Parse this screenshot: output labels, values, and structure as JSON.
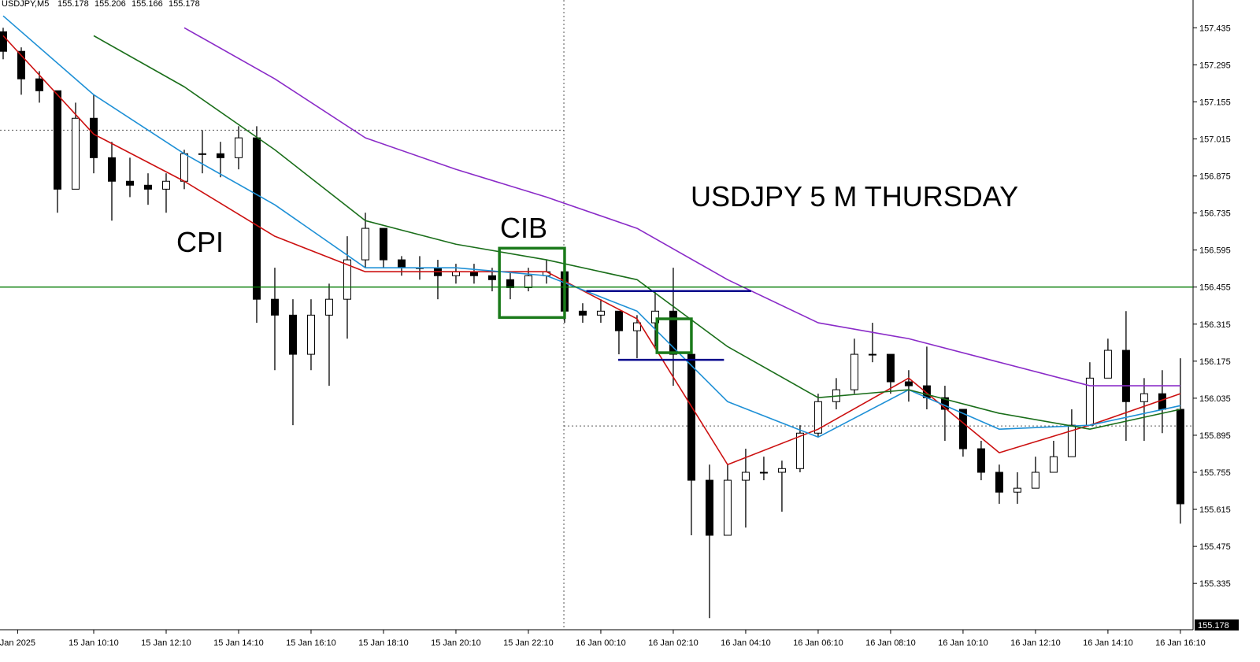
{
  "chart_data": {
    "type": "candlestick",
    "symbol": "USDJPY,M5",
    "bar": [
      155.178,
      155.206,
      155.166,
      155.178
    ],
    "last_price": 155.178,
    "annotations": [
      "CPI",
      "CIB",
      "USDJPY 5 M THURSDAY"
    ],
    "annotation_color": "#e01010",
    "xlim": [
      -0.174,
      65.7
    ],
    "ylim": [
      155.16,
      157.54
    ],
    "xticks": [
      {
        "value": 0.8,
        "label": "Jan 2025"
      },
      {
        "value": 5,
        "label": "15 Jan 10:10"
      },
      {
        "value": 9,
        "label": "15 Jan 12:10"
      },
      {
        "value": 13,
        "label": "15 Jan 14:10"
      },
      {
        "value": 17,
        "label": "15 Jan 16:10"
      },
      {
        "value": 21,
        "label": "15 Jan 18:10"
      },
      {
        "value": 25,
        "label": "15 Jan 20:10"
      },
      {
        "value": 29,
        "label": "15 Jan 22:10"
      },
      {
        "value": 33,
        "label": "16 Jan 00:10"
      },
      {
        "value": 37,
        "label": "16 Jan 02:10"
      },
      {
        "value": 41,
        "label": "16 Jan 04:10"
      },
      {
        "value": 45,
        "label": "16 Jan 06:10"
      },
      {
        "value": 49,
        "label": "16 Jan 08:10"
      },
      {
        "value": 53,
        "label": "16 Jan 10:10"
      },
      {
        "value": 57,
        "label": "16 Jan 12:10"
      },
      {
        "value": 61,
        "label": "16 Jan 14:10"
      },
      {
        "value": 65,
        "label": "16 Jan 16:10"
      }
    ],
    "yticks": [
      157.435,
      157.295,
      157.155,
      157.015,
      156.875,
      156.735,
      156.595,
      156.455,
      156.315,
      156.175,
      156.035,
      155.895,
      155.755,
      155.615,
      155.475,
      155.335
    ],
    "bull_color": "#ffffff",
    "bear_color": "#000000",
    "open": [
      157.42,
      157.346,
      157.242,
      157.197,
      156.825,
      157.093,
      156.944,
      156.855,
      156.84,
      156.825,
      156.855,
      156.959,
      156.959,
      156.944,
      157.019,
      156.409,
      156.349,
      156.201,
      156.349,
      156.409,
      156.558,
      156.677,
      156.558,
      156.528,
      156.528,
      156.498,
      156.513,
      156.498,
      156.483,
      156.453,
      156.498,
      156.513,
      156.364,
      156.349,
      156.364,
      156.29,
      156.32,
      156.364,
      156.201,
      155.725,
      155.517,
      155.725,
      155.755,
      155.755,
      155.769,
      155.903,
      156.022,
      156.067,
      156.201,
      156.201,
      156.097,
      156.082,
      156.037,
      155.993,
      155.844,
      155.755,
      155.68,
      155.695,
      155.755,
      155.814,
      155.933,
      156.111,
      156.216,
      156.022,
      156.052,
      155.993
    ],
    "high": [
      157.435,
      157.361,
      157.271,
      157.197,
      157.152,
      157.182,
      157.004,
      156.944,
      156.885,
      156.885,
      156.974,
      157.048,
      157.004,
      157.063,
      157.063,
      156.528,
      156.409,
      156.409,
      156.468,
      156.647,
      156.736,
      156.677,
      156.572,
      156.572,
      156.558,
      156.543,
      156.543,
      156.528,
      156.513,
      156.528,
      156.558,
      156.513,
      156.394,
      156.409,
      156.364,
      156.349,
      156.439,
      156.528,
      156.201,
      155.784,
      155.784,
      155.844,
      155.814,
      155.799,
      155.933,
      156.052,
      156.111,
      156.26,
      156.32,
      156.201,
      156.141,
      156.23,
      156.082,
      155.993,
      155.874,
      155.784,
      155.755,
      155.814,
      155.874,
      155.993,
      156.171,
      156.26,
      156.364,
      156.111,
      156.141,
      156.186
    ],
    "low": [
      157.316,
      157.182,
      157.152,
      156.736,
      156.825,
      156.885,
      156.706,
      156.795,
      156.766,
      156.736,
      156.825,
      156.885,
      156.87,
      156.9,
      156.32,
      156.141,
      155.933,
      156.141,
      156.082,
      156.26,
      156.528,
      156.528,
      156.498,
      156.483,
      156.409,
      156.468,
      156.468,
      156.439,
      156.409,
      156.439,
      156.468,
      156.32,
      156.32,
      156.32,
      156.201,
      156.186,
      156.23,
      156.082,
      155.517,
      155.204,
      155.517,
      155.546,
      155.725,
      155.606,
      155.755,
      155.888,
      155.993,
      156.052,
      156.171,
      156.052,
      156.022,
      155.993,
      155.874,
      155.814,
      155.725,
      155.636,
      155.636,
      155.695,
      155.755,
      155.814,
      155.933,
      156.111,
      155.874,
      155.874,
      155.903,
      155.561
    ],
    "close": [
      157.346,
      157.242,
      157.197,
      156.825,
      157.093,
      156.944,
      156.855,
      156.84,
      156.825,
      156.855,
      156.959,
      156.959,
      156.944,
      157.019,
      156.409,
      156.349,
      156.201,
      156.349,
      156.409,
      156.558,
      156.677,
      156.558,
      156.528,
      156.528,
      156.498,
      156.513,
      156.498,
      156.483,
      156.453,
      156.498,
      156.513,
      156.364,
      156.349,
      156.364,
      156.29,
      156.32,
      156.364,
      156.201,
      155.725,
      155.517,
      155.725,
      155.755,
      155.755,
      155.769,
      155.903,
      156.022,
      156.067,
      156.201,
      156.201,
      156.097,
      156.082,
      156.037,
      155.993,
      155.844,
      155.755,
      155.68,
      155.695,
      155.755,
      155.814,
      155.933,
      156.111,
      156.216,
      156.022,
      156.052,
      155.993,
      155.636
    ],
    "series": [
      {
        "color": "#cc1010",
        "x": [
          0,
          5,
          10,
          15,
          20,
          25,
          30,
          35,
          40,
          45,
          50,
          55,
          60,
          65
        ],
        "values": [
          157.405,
          157.033,
          156.855,
          156.647,
          156.513,
          156.513,
          156.513,
          156.335,
          155.784,
          155.918,
          156.111,
          155.829,
          155.933,
          156.052
        ]
      },
      {
        "color": "#1e90d6",
        "x": [
          0,
          5,
          10,
          15,
          20,
          25,
          30,
          35,
          40,
          45,
          50,
          55,
          60,
          65
        ],
        "values": [
          157.48,
          157.182,
          156.959,
          156.766,
          156.528,
          156.528,
          156.498,
          156.364,
          156.022,
          155.888,
          156.067,
          155.918,
          155.933,
          156.007
        ]
      },
      {
        "color": "#1a6e1a",
        "x": [
          5,
          10,
          15,
          20,
          25,
          30,
          35,
          40,
          45,
          50,
          55,
          60,
          65
        ],
        "values": [
          157.405,
          157.212,
          156.974,
          156.706,
          156.617,
          156.558,
          156.483,
          156.23,
          156.037,
          156.067,
          155.978,
          155.918,
          155.993
        ]
      },
      {
        "color": "#8a2bc8",
        "x": [
          10,
          15,
          20,
          25,
          30,
          35,
          40,
          45,
          50,
          55,
          60,
          65
        ],
        "values": [
          157.435,
          157.242,
          157.019,
          156.9,
          156.795,
          156.677,
          156.483,
          156.32,
          156.26,
          156.171,
          156.082,
          156.082
        ]
      }
    ],
    "hlines": [
      {
        "value": 156.455,
        "color": "#007a00"
      },
      {
        "value": 156.44,
        "x": [
          32.2,
          41.3
        ],
        "color": "#00008b"
      },
      {
        "value": 156.18,
        "x": [
          33.96,
          39.8
        ],
        "color": "#00008b"
      }
    ],
    "boxes": [
      {
        "x": [
          27.4,
          31.0
        ],
        "y": [
          156.602,
          156.34
        ],
        "color": "#1a7a1a"
      },
      {
        "x": [
          36.1,
          38.0
        ],
        "y": [
          156.335,
          156.207
        ],
        "color": "#1a7a1a"
      }
    ],
    "dotted": {
      "x": 30.96,
      "y": [
        157.048,
        155.93
      ]
    }
  }
}
